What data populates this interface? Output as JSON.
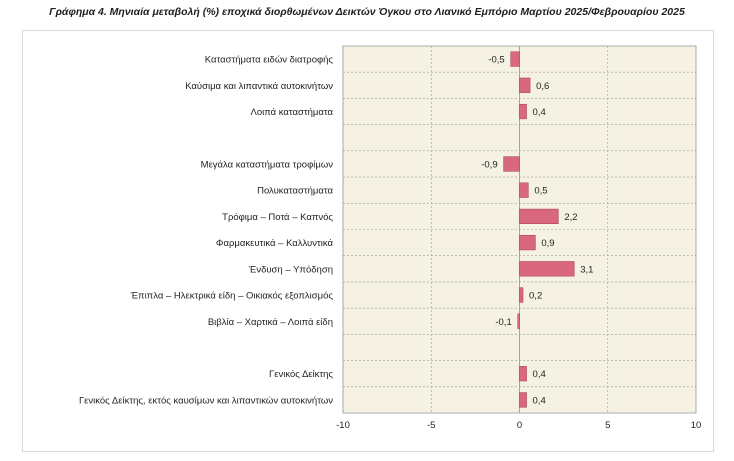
{
  "chart_data": {
    "type": "bar",
    "orientation": "horizontal",
    "title": "Γράφημα 4. Μηνιαία μεταβολή (%) εποχικά διορθωμένων Δεικτών Όγκου στο Λιανικό Εμπόριο Μαρτίου 2025/Φεβρουαρίου 2025",
    "categories": [
      "Καταστήματα ειδών διατροφής",
      "Καύσιμα και λιπαντικά αυτοκινήτων",
      "Λοιπά καταστήματα",
      "",
      "Μεγάλα καταστήματα τροφίμων",
      "Πολυκαταστήματα",
      "Τρόφιμα – Ποτά – Καπνός",
      "Φαρμακευτικά – Καλλυντικά",
      "Ένδυση – Υπόδηση",
      "Έπιπλα – Ηλεκτρικά είδη – Οικιακός εξοπλισμός",
      "Βιβλία – Χαρτικά – Λοιπά είδη",
      "",
      "Γενικός Δείκτης",
      "Γενικός Δείκτης, εκτός καυσίμων και λιπαντικών αυτοκινήτων"
    ],
    "values": [
      -0.5,
      0.6,
      0.4,
      null,
      -0.9,
      0.5,
      2.2,
      0.9,
      3.1,
      0.2,
      -0.1,
      null,
      0.4,
      0.4
    ],
    "data_labels": [
      "-0,5",
      "0,6",
      "0,4",
      "",
      "-0,9",
      "0,5",
      "2,2",
      "0,9",
      "3,1",
      "0,2",
      "-0,1",
      "",
      "0,4",
      "0,4"
    ],
    "xlim": [
      -10,
      10
    ],
    "xticks": [
      -10,
      -5,
      0,
      5,
      10
    ],
    "xtick_labels": [
      "-10",
      "-5",
      "0",
      "5",
      "10"
    ],
    "grid": true,
    "colors": {
      "bar_fill": "#d9687f",
      "bar_stroke": "#a33a52",
      "plot_bg": "#f5f2e3",
      "grid": "#9c9c9c"
    }
  }
}
